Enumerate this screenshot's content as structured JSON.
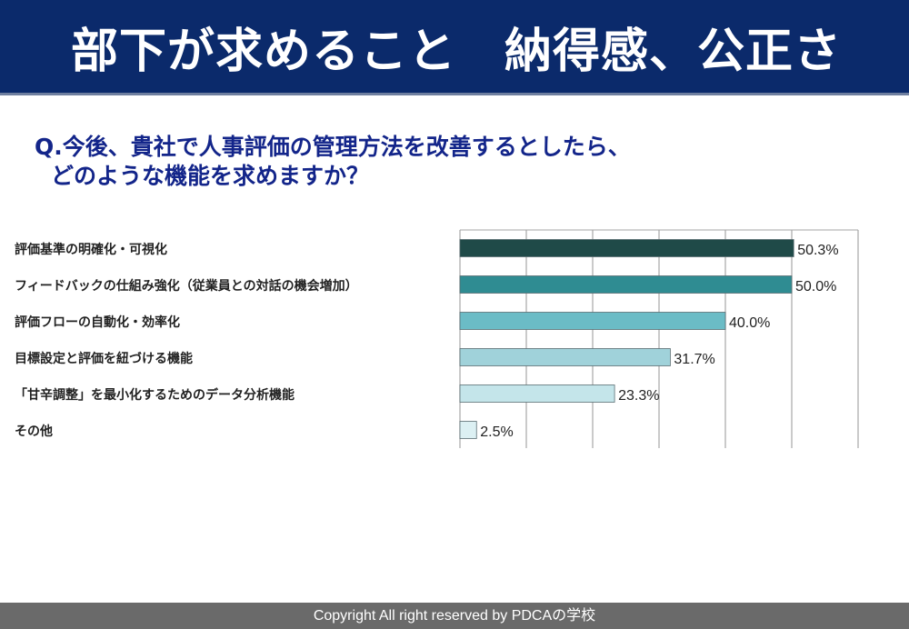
{
  "title": "部下が求めること　納得感、公正さ",
  "question": {
    "line1": "Q.今後、貴社で人事評価の管理方法を改善するとしたら、",
    "line2": "どのような機能を求めますか？"
  },
  "footer": "Copyright All right reserved by PDCAの学校",
  "colors": {
    "header_bg": "#0b2a6b",
    "question_text": "#13258a",
    "bars": [
      "#1f4a48",
      "#2f8c92",
      "#6bbcc6",
      "#a0d2da",
      "#c4e5ea",
      "#dcf0f3"
    ]
  },
  "chart_data": {
    "type": "bar",
    "orientation": "horizontal",
    "categories": [
      "評価基準の明確化・可視化",
      "フィードバックの仕組み強化（従業員との対話の機会増加）",
      "評価フローの自動化・効率化",
      "目標設定と評価を紐づける機能",
      "「甘辛調整」を最小化するためのデータ分析機能",
      "その他"
    ],
    "values": [
      50.3,
      50.0,
      40.0,
      31.7,
      23.3,
      2.5
    ],
    "value_labels": [
      "50.3%",
      "50.0%",
      "40.0%",
      "31.7%",
      "23.3%",
      "2.5%"
    ],
    "xlim": [
      0,
      60
    ],
    "grid": true,
    "title": "",
    "xlabel": "",
    "ylabel": ""
  }
}
